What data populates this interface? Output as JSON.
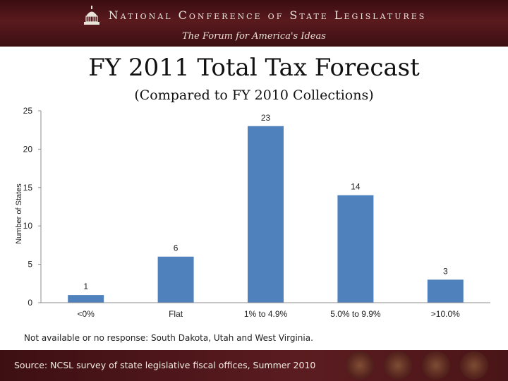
{
  "header": {
    "org_name": "National Conference of State Legislatures",
    "tagline": "The Forum for America's Ideas"
  },
  "colors": {
    "banner": "#4a1518",
    "bar": "#4f81bd"
  },
  "chart_data": {
    "type": "bar",
    "title": "FY 2011 Total Tax Forecast",
    "subtitle": "(Compared to FY 2010 Collections)",
    "ylabel": "Number of States",
    "xlabel": "",
    "categories": [
      "<0%",
      "Flat",
      "1% to 4.9%",
      "5.0% to 9.9%",
      ">10.0%"
    ],
    "values": [
      1,
      6,
      23,
      14,
      3
    ],
    "data_labels": [
      "1",
      "6",
      "23",
      "14",
      "3"
    ],
    "ylim": [
      0,
      25
    ],
    "yticks": [
      "0",
      "5",
      "10",
      "15",
      "20",
      "25"
    ],
    "grid": false,
    "legend": "none"
  },
  "footnote": "Not available or no response: South Dakota, Utah and West Virginia.",
  "source": "Source: NCSL survey of state legislative fiscal offices, Summer 2010"
}
